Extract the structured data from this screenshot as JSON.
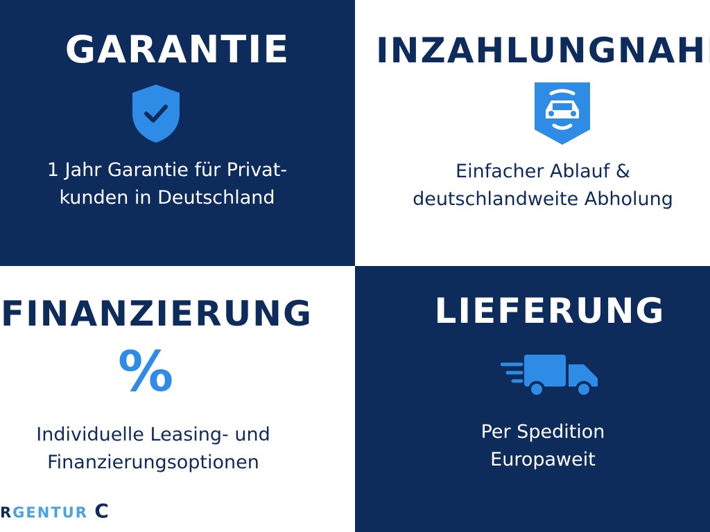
{
  "colors": {
    "navy": "#0d2b5b",
    "accent": "#2e8be6",
    "white": "#ffffff"
  },
  "tiles": [
    {
      "title": "GARANTIE",
      "icon": "shield-check-icon",
      "text": [
        "1 Jahr Garantie für Privat-",
        "kunden in Deutschland"
      ]
    },
    {
      "title": "INZAHLUNGNAHME",
      "icon": "car-badge-icon",
      "text": [
        "Einfacher Ablauf &",
        "deutschlandweite Abholung"
      ]
    },
    {
      "title": "FINANZIERUNG",
      "icon": "percent-icon",
      "text": [
        "Individuelle Leasing- und",
        "Finanzierungsoptionen"
      ]
    },
    {
      "title": "LIEFERUNG",
      "icon": "delivery-truck-icon",
      "text": [
        "Per Spedition",
        "Europaweit"
      ]
    }
  ],
  "logo": {
    "first": "R",
    "rest": "GENTUR"
  }
}
